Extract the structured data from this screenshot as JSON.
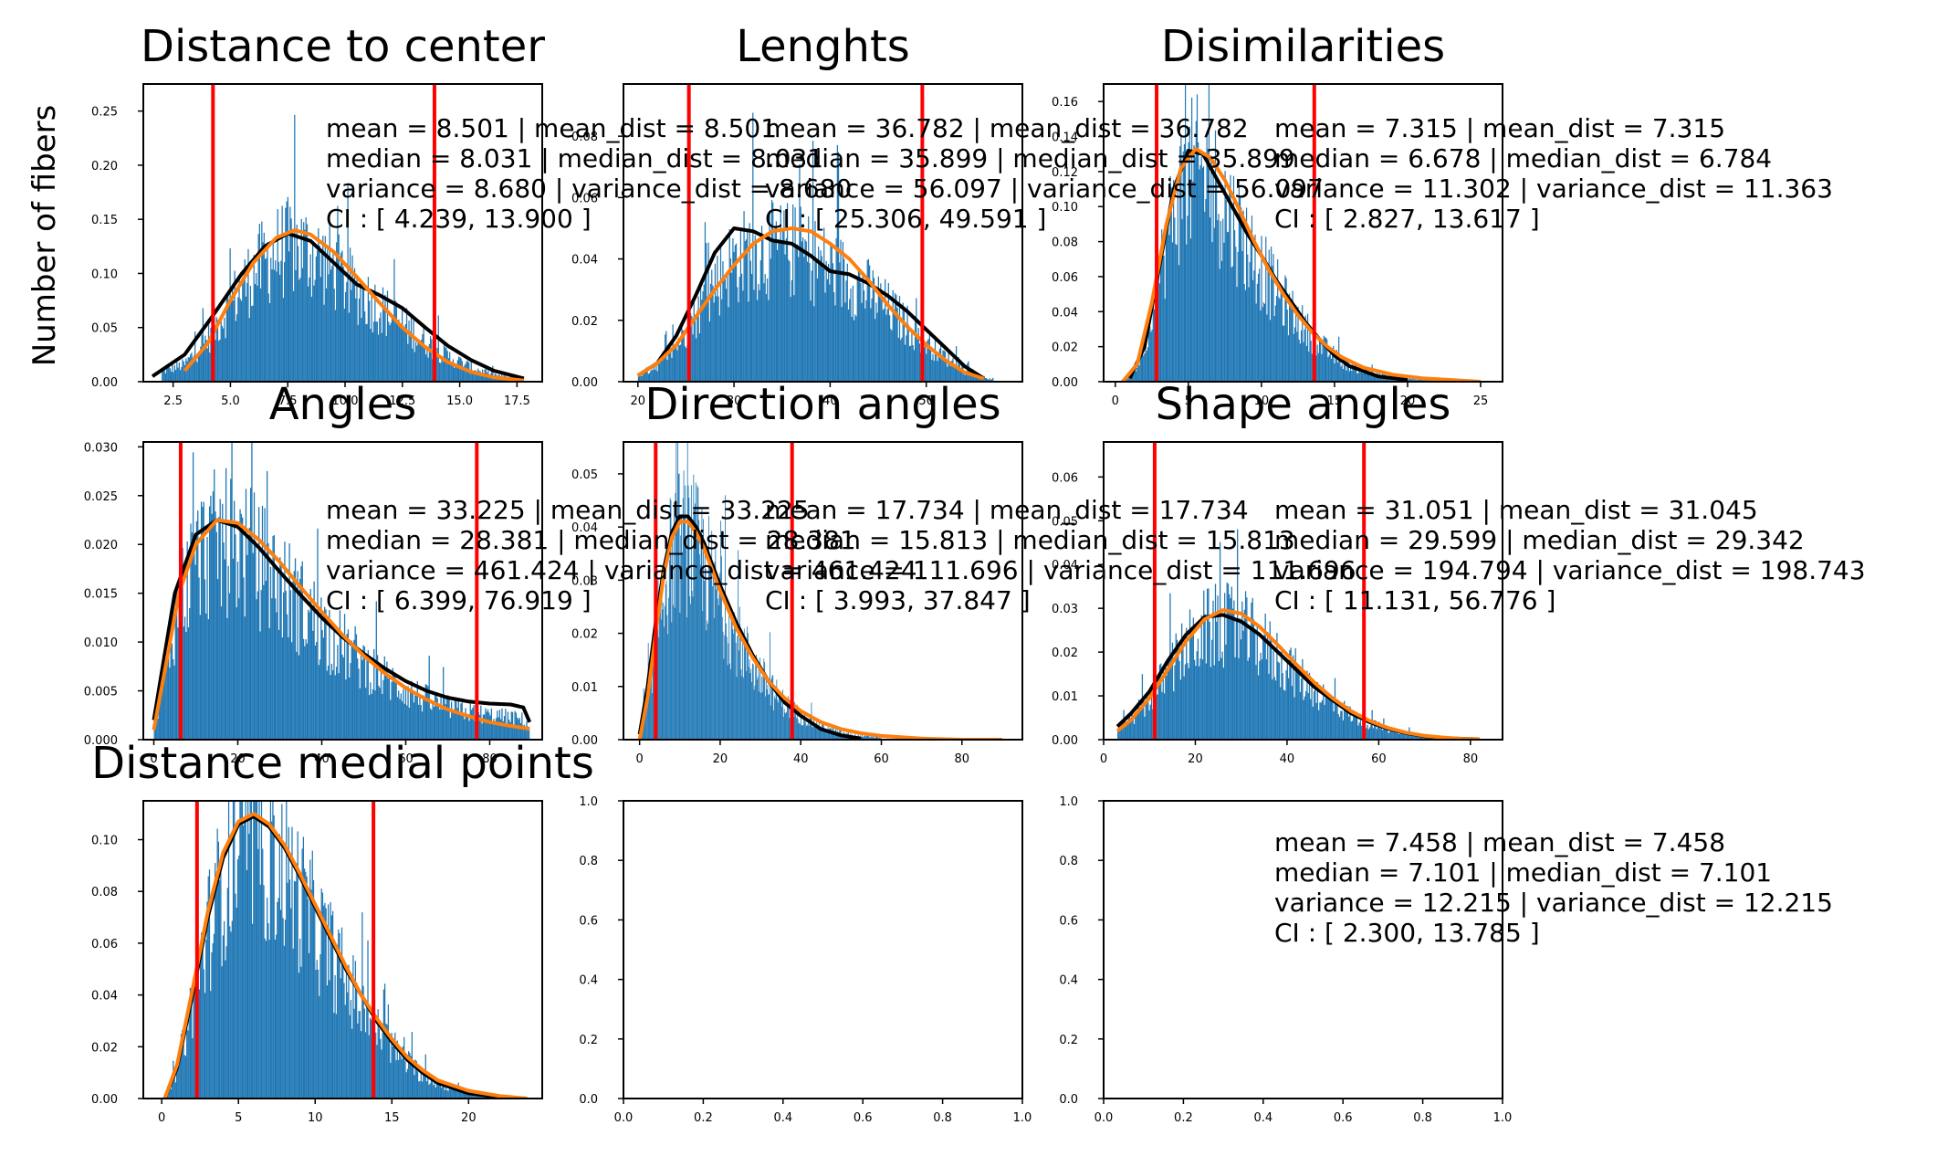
{
  "figure": {
    "ylabel": "Number of fibers"
  },
  "colors": {
    "hist": "#1f77b4",
    "kde": "#000000",
    "fit": "#ff7f0e",
    "ci": "#ff0000",
    "axis": "#000000",
    "text": "#000000"
  },
  "chart_data": [
    {
      "type": "histogram",
      "title": "Distance to center",
      "xlim": [
        1.2,
        18.6
      ],
      "ylim": [
        0,
        0.275
      ],
      "xticks": [
        2.5,
        5.0,
        7.5,
        10.0,
        12.5,
        15.0,
        17.5
      ],
      "xtick_labels": [
        "2.5",
        "5.0",
        "7.5",
        "10.0",
        "12.5",
        "15.0",
        "17.5"
      ],
      "yticks": [
        0,
        0.05,
        0.1,
        0.15,
        0.2,
        0.25
      ],
      "ytick_labels": [
        "0.00",
        "0.05",
        "0.10",
        "0.15",
        "0.20",
        "0.25"
      ],
      "data_range": [
        2.0,
        17.8
      ],
      "ci": [
        4.239,
        13.9
      ],
      "kde": {
        "x": [
          1.6,
          3.0,
          4.2,
          5.5,
          6.5,
          7.5,
          8.5,
          9.5,
          10.5,
          11.5,
          12.5,
          13.5,
          14.5,
          15.5,
          16.5,
          17.8
        ],
        "y": [
          0.005,
          0.025,
          0.06,
          0.1,
          0.125,
          0.137,
          0.13,
          0.11,
          0.09,
          0.08,
          0.068,
          0.05,
          0.033,
          0.02,
          0.01,
          0.003
        ]
      },
      "fit": {
        "x": [
          3.0,
          4.0,
          5.0,
          6.0,
          7.0,
          7.8,
          8.5,
          9.5,
          10.5,
          11.5,
          12.5,
          13.5,
          14.5,
          15.5,
          16.5,
          17.8
        ],
        "y": [
          0.01,
          0.035,
          0.075,
          0.11,
          0.133,
          0.14,
          0.136,
          0.12,
          0.097,
          0.073,
          0.05,
          0.032,
          0.018,
          0.009,
          0.004,
          0.001
        ]
      },
      "stats": [
        "mean = 8.501   |   mean_dist = 8.501",
        "median = 8.031   |   median_dist = 8.031",
        "variance = 8.680   |   variance_dist = 8.680",
        "CI : [ 4.239, 13.900 ]"
      ]
    },
    {
      "type": "histogram",
      "title": "Lenghts",
      "xlim": [
        18.5,
        60.0
      ],
      "ylim": [
        0,
        0.097
      ],
      "xticks": [
        20,
        30,
        40,
        50
      ],
      "xtick_labels": [
        "20",
        "30",
        "40",
        "50"
      ],
      "yticks": [
        0,
        0.02,
        0.04,
        0.06,
        0.08
      ],
      "ytick_labels": [
        "0.00",
        "0.02",
        "0.04",
        "0.06",
        "0.08"
      ],
      "data_range": [
        20.0,
        57.0
      ],
      "ci": [
        25.306,
        49.591
      ],
      "kde": {
        "x": [
          20.0,
          22.0,
          24.0,
          26.0,
          28.0,
          30.0,
          32.0,
          34.0,
          36.0,
          38.0,
          40.0,
          42.0,
          44.0,
          46.0,
          48.0,
          50.0,
          52.0,
          54.0,
          56.0
        ],
        "y": [
          0.002,
          0.006,
          0.015,
          0.028,
          0.042,
          0.05,
          0.049,
          0.046,
          0.045,
          0.041,
          0.036,
          0.035,
          0.032,
          0.028,
          0.023,
          0.017,
          0.011,
          0.005,
          0.001
        ]
      },
      "fit": {
        "x": [
          20.0,
          22.0,
          24.0,
          26.0,
          28.0,
          30.0,
          32.0,
          34.0,
          36.0,
          38.0,
          40.0,
          42.0,
          44.0,
          46.0,
          48.0,
          50.0,
          52.0,
          54.0,
          56.0
        ],
        "y": [
          0.002,
          0.006,
          0.012,
          0.021,
          0.03,
          0.038,
          0.045,
          0.049,
          0.05,
          0.049,
          0.045,
          0.04,
          0.033,
          0.025,
          0.018,
          0.012,
          0.007,
          0.003,
          0.001
        ]
      },
      "stats": [
        "mean = 36.782   |   mean_dist = 36.782",
        "median = 35.899   |   median_dist = 35.899",
        "variance = 56.097   |   variance_dist = 56.097",
        "CI : [ 25.306, 49.591 ]"
      ]
    },
    {
      "type": "histogram",
      "title": "Disimilarities",
      "xlim": [
        -0.8,
        26.5
      ],
      "ylim": [
        0,
        0.17
      ],
      "xticks": [
        0,
        5,
        10,
        15,
        20,
        25
      ],
      "xtick_labels": [
        "0",
        "5",
        "10",
        "15",
        "20",
        "25"
      ],
      "yticks": [
        0,
        0.02,
        0.04,
        0.06,
        0.08,
        0.1,
        0.12,
        0.14,
        0.16
      ],
      "ytick_labels": [
        "0.00",
        "0.02",
        "0.04",
        "0.06",
        "0.08",
        "0.10",
        "0.12",
        "0.14",
        "0.16"
      ],
      "data_range": [
        0.5,
        24.0
      ],
      "ci": [
        2.827,
        13.617
      ],
      "kde": {
        "x": [
          1.0,
          2.0,
          3.0,
          4.0,
          5.0,
          6.0,
          7.0,
          8.0,
          9.0,
          10.0,
          11.0,
          12.0,
          13.0,
          14.0,
          15.0,
          16.0,
          18.0,
          20.0
        ],
        "y": [
          0.002,
          0.02,
          0.065,
          0.11,
          0.132,
          0.13,
          0.115,
          0.1,
          0.085,
          0.072,
          0.058,
          0.046,
          0.034,
          0.024,
          0.015,
          0.009,
          0.003,
          0.001
        ]
      },
      "fit": {
        "x": [
          0.5,
          1.5,
          2.5,
          3.5,
          4.5,
          5.5,
          6.5,
          7.5,
          8.5,
          9.5,
          10.5,
          11.5,
          12.5,
          13.5,
          14.5,
          15.5,
          17.0,
          19.0,
          21.0,
          23.0,
          25.0
        ],
        "y": [
          0.0,
          0.01,
          0.045,
          0.09,
          0.122,
          0.133,
          0.128,
          0.115,
          0.098,
          0.08,
          0.064,
          0.05,
          0.038,
          0.028,
          0.02,
          0.014,
          0.008,
          0.004,
          0.002,
          0.001,
          0.0
        ]
      },
      "stats": [
        "mean = 7.315   |   mean_dist = 7.315",
        "median = 6.678   |   median_dist = 6.784",
        "variance = 11.302   |   variance_dist = 11.363",
        "CI : [ 2.827, 13.617 ]"
      ]
    },
    {
      "type": "histogram",
      "title": "Angles",
      "xlim": [
        -2.5,
        92.5
      ],
      "ylim": [
        0,
        0.0305
      ],
      "xticks": [
        0,
        20,
        40,
        60,
        80
      ],
      "xtick_labels": [
        "0",
        "20",
        "40",
        "60",
        "80"
      ],
      "yticks": [
        0,
        0.005,
        0.01,
        0.015,
        0.02,
        0.025,
        0.03
      ],
      "ytick_labels": [
        "0.000",
        "0.005",
        "0.010",
        "0.015",
        "0.020",
        "0.025",
        "0.030"
      ],
      "data_range": [
        0.0,
        89.5
      ],
      "ci": [
        6.399,
        76.919
      ],
      "kde": {
        "x": [
          0.0,
          5.0,
          10.0,
          15.0,
          20.0,
          25.0,
          30.0,
          35.0,
          40.0,
          45.0,
          50.0,
          55.0,
          60.0,
          65.0,
          70.0,
          75.0,
          80.0,
          85.0,
          88.0,
          89.5
        ],
        "y": [
          0.002,
          0.015,
          0.021,
          0.0225,
          0.0218,
          0.0197,
          0.0172,
          0.0148,
          0.0125,
          0.0105,
          0.0088,
          0.0073,
          0.006,
          0.005,
          0.0043,
          0.0039,
          0.0037,
          0.0036,
          0.0033,
          0.0018
        ]
      },
      "fit": {
        "x": [
          0.0,
          3.0,
          6.0,
          10.0,
          15.0,
          20.0,
          25.0,
          30.0,
          35.0,
          40.0,
          45.0,
          50.0,
          55.0,
          60.0,
          65.0,
          70.0,
          75.0,
          80.0,
          85.0,
          89.5
        ],
        "y": [
          0.001,
          0.008,
          0.015,
          0.02,
          0.0225,
          0.0222,
          0.0205,
          0.0182,
          0.0156,
          0.0131,
          0.0107,
          0.0086,
          0.0068,
          0.0053,
          0.0041,
          0.0031,
          0.0024,
          0.0018,
          0.0014,
          0.0011
        ]
      },
      "stats": [
        "mean = 33.225   |   mean_dist = 33.225",
        "median = 28.381   |   median_dist = 28.381",
        "variance = 461.424   |   variance_dist = 461.424",
        "CI : [ 6.399, 76.919 ]"
      ]
    },
    {
      "type": "histogram",
      "title": "Direction angles",
      "xlim": [
        -4.0,
        95.0
      ],
      "ylim": [
        0,
        0.056
      ],
      "xticks": [
        0,
        20,
        40,
        60,
        80
      ],
      "xtick_labels": [
        "0",
        "20",
        "40",
        "60",
        "80"
      ],
      "yticks": [
        0,
        0.01,
        0.02,
        0.03,
        0.04,
        0.05
      ],
      "ytick_labels": [
        "0.00",
        "0.01",
        "0.02",
        "0.03",
        "0.04",
        "0.05"
      ],
      "data_range": [
        0.0,
        60.0
      ],
      "ci": [
        3.993,
        37.847
      ],
      "kde": {
        "x": [
          0.0,
          2.0,
          4.0,
          6.0,
          8.0,
          10.0,
          12.0,
          14.0,
          16.0,
          18.0,
          20.0,
          24.0,
          28.0,
          32.0,
          36.0,
          40.0,
          45.0,
          50.0,
          55.0
        ],
        "y": [
          0.001,
          0.01,
          0.022,
          0.032,
          0.039,
          0.042,
          0.042,
          0.04,
          0.037,
          0.033,
          0.029,
          0.022,
          0.016,
          0.011,
          0.007,
          0.0045,
          0.002,
          0.0008,
          0.0002
        ]
      },
      "fit": {
        "x": [
          0.0,
          2.0,
          4.0,
          6.0,
          8.0,
          10.0,
          12.0,
          14.0,
          16.0,
          18.0,
          20.0,
          24.0,
          28.0,
          32.0,
          36.0,
          40.0,
          45.0,
          50.0,
          55.0,
          60.0,
          70.0,
          80.0,
          90.0
        ],
        "y": [
          0.0,
          0.008,
          0.02,
          0.031,
          0.038,
          0.041,
          0.041,
          0.039,
          0.036,
          0.032,
          0.028,
          0.021,
          0.0155,
          0.011,
          0.0078,
          0.0054,
          0.0033,
          0.002,
          0.0012,
          0.0007,
          0.0002,
          0.0,
          0.0
        ]
      },
      "stats": [
        "mean = 17.734   |   mean_dist = 17.734",
        "median = 15.813   |   median_dist = 15.813",
        "variance = 111.696   |   variance_dist = 111.696",
        "CI : [ 3.993, 37.847 ]"
      ]
    },
    {
      "type": "histogram",
      "title": "Shape angles",
      "xlim": [
        0.0,
        87.0
      ],
      "ylim": [
        0,
        0.068
      ],
      "xticks": [
        0,
        20,
        40,
        60,
        80
      ],
      "xtick_labels": [
        "0",
        "20",
        "40",
        "60",
        "80"
      ],
      "yticks": [
        0,
        0.01,
        0.02,
        0.03,
        0.04,
        0.05,
        0.06
      ],
      "ytick_labels": [
        "0.00",
        "0.01",
        "0.02",
        "0.03",
        "0.04",
        "0.05",
        "0.06"
      ],
      "data_range": [
        3.0,
        84.0
      ],
      "ci": [
        11.131,
        56.776
      ],
      "kde": {
        "x": [
          3.0,
          6.0,
          10.0,
          14.0,
          18.0,
          22.0,
          26.0,
          30.0,
          34.0,
          38.0,
          42.0,
          46.0,
          50.0,
          54.0,
          58.0,
          62.0,
          66.0,
          70.0,
          74.0,
          78.0,
          82.0
        ],
        "y": [
          0.003,
          0.006,
          0.011,
          0.018,
          0.024,
          0.028,
          0.0285,
          0.027,
          0.024,
          0.02,
          0.016,
          0.012,
          0.009,
          0.006,
          0.004,
          0.0025,
          0.0015,
          0.0008,
          0.0004,
          0.0002,
          0.0001
        ]
      },
      "fit": {
        "x": [
          3.0,
          6.0,
          10.0,
          14.0,
          18.0,
          22.0,
          26.0,
          30.0,
          34.0,
          38.0,
          42.0,
          46.0,
          50.0,
          54.0,
          58.0,
          62.0,
          66.0,
          70.0,
          74.0,
          78.0,
          82.0
        ],
        "y": [
          0.002,
          0.0045,
          0.0095,
          0.016,
          0.0225,
          0.0275,
          0.0296,
          0.0288,
          0.0258,
          0.0216,
          0.0172,
          0.013,
          0.0094,
          0.0065,
          0.0043,
          0.0027,
          0.0016,
          0.0009,
          0.0005,
          0.0002,
          0.0001
        ]
      },
      "stats": [
        "mean = 31.051   |   mean_dist = 31.045",
        "median = 29.599   |   median_dist = 29.342",
        "variance = 194.794   |   variance_dist = 198.743",
        "CI : [ 11.131, 56.776 ]"
      ]
    },
    {
      "type": "histogram",
      "title": "Distance medial points",
      "xlim": [
        -1.2,
        24.8
      ],
      "ylim": [
        0,
        0.115
      ],
      "xticks": [
        0,
        5,
        10,
        15,
        20
      ],
      "xtick_labels": [
        "0",
        "5",
        "10",
        "15",
        "20"
      ],
      "yticks": [
        0,
        0.02,
        0.04,
        0.06,
        0.08,
        0.1
      ],
      "ytick_labels": [
        "0.00",
        "0.02",
        "0.04",
        "0.06",
        "0.08",
        "0.10"
      ],
      "data_range": [
        0.2,
        23.8
      ],
      "ci": [
        2.3,
        13.8
      ],
      "kde": {
        "x": [
          0.2,
          1.0,
          2.0,
          3.0,
          4.0,
          5.0,
          6.0,
          7.0,
          8.0,
          9.0,
          10.0,
          11.0,
          12.0,
          13.0,
          14.0,
          15.0,
          16.0,
          17.0,
          18.0,
          20.0,
          22.0,
          23.8
        ],
        "y": [
          0.0,
          0.012,
          0.04,
          0.07,
          0.093,
          0.106,
          0.109,
          0.105,
          0.097,
          0.086,
          0.074,
          0.062,
          0.05,
          0.04,
          0.03,
          0.022,
          0.015,
          0.01,
          0.006,
          0.002,
          0.0005,
          0.0
        ]
      },
      "fit": {
        "x": [
          0.2,
          1.0,
          2.0,
          3.0,
          4.0,
          5.0,
          6.0,
          7.0,
          8.0,
          9.0,
          10.0,
          11.0,
          12.0,
          13.0,
          14.0,
          15.0,
          16.0,
          17.0,
          18.0,
          20.0,
          22.0,
          23.8
        ],
        "y": [
          0.0,
          0.013,
          0.042,
          0.072,
          0.095,
          0.107,
          0.11,
          0.106,
          0.098,
          0.087,
          0.075,
          0.063,
          0.051,
          0.04,
          0.031,
          0.023,
          0.016,
          0.011,
          0.007,
          0.003,
          0.001,
          0.0
        ]
      },
      "stats": [
        "mean = 7.458   |   mean_dist = 7.458",
        "median = 7.101   |   median_dist = 7.101",
        "variance = 12.215   |   variance_dist = 12.215",
        "CI : [ 2.300, 13.785 ]"
      ]
    },
    {
      "type": "empty",
      "title": "",
      "xlim": [
        0,
        1
      ],
      "ylim": [
        0,
        1
      ],
      "xticks": [
        0,
        0.2,
        0.4,
        0.6,
        0.8,
        1.0
      ],
      "xtick_labels": [
        "0.0",
        "0.2",
        "0.4",
        "0.6",
        "0.8",
        "1.0"
      ],
      "yticks": [
        0,
        0.2,
        0.4,
        0.6,
        0.8,
        1.0
      ],
      "ytick_labels": [
        "0.0",
        "0.2",
        "0.4",
        "0.6",
        "0.8",
        "1.0"
      ]
    },
    {
      "type": "empty",
      "title": "",
      "xlim": [
        0,
        1
      ],
      "ylim": [
        0,
        1
      ],
      "xticks": [
        0,
        0.2,
        0.4,
        0.6,
        0.8,
        1.0
      ],
      "xtick_labels": [
        "0.0",
        "0.2",
        "0.4",
        "0.6",
        "0.8",
        "1.0"
      ],
      "yticks": [
        0,
        0.2,
        0.4,
        0.6,
        0.8,
        1.0
      ],
      "ytick_labels": [
        "0.0",
        "0.2",
        "0.4",
        "0.6",
        "0.8",
        "1.0"
      ]
    }
  ]
}
